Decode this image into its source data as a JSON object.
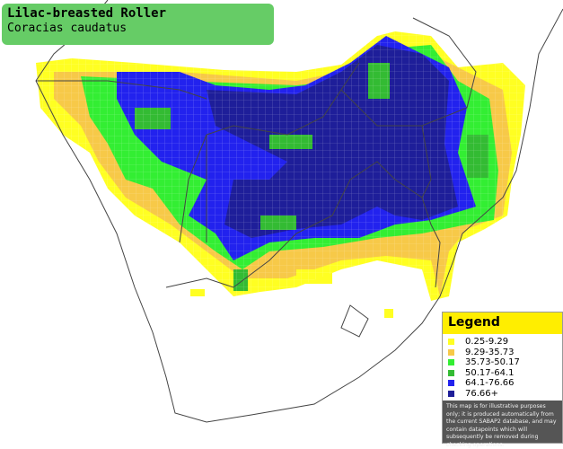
{
  "header": {
    "title": "Lilac-breasted Roller",
    "subtitle": "Coracias caudatus"
  },
  "legend": {
    "title": "Legend",
    "items": [
      {
        "label": "0.25-9.29",
        "color": "#ffff22"
      },
      {
        "label": "9.29-35.73",
        "color": "#f7c948"
      },
      {
        "label": "35.73-50.17",
        "color": "#33ee33"
      },
      {
        "label": "50.17-64.1",
        "color": "#33bb33"
      },
      {
        "label": "64.1-76.66",
        "color": "#2222ee"
      },
      {
        "label": "76.66+",
        "color": "#1e1e99"
      }
    ],
    "note": "This map is for illustrative purposes only; it is produced automatically from the current SABAP2 database, and may contain datapoints which will subsequently be removed during checking operations."
  }
}
